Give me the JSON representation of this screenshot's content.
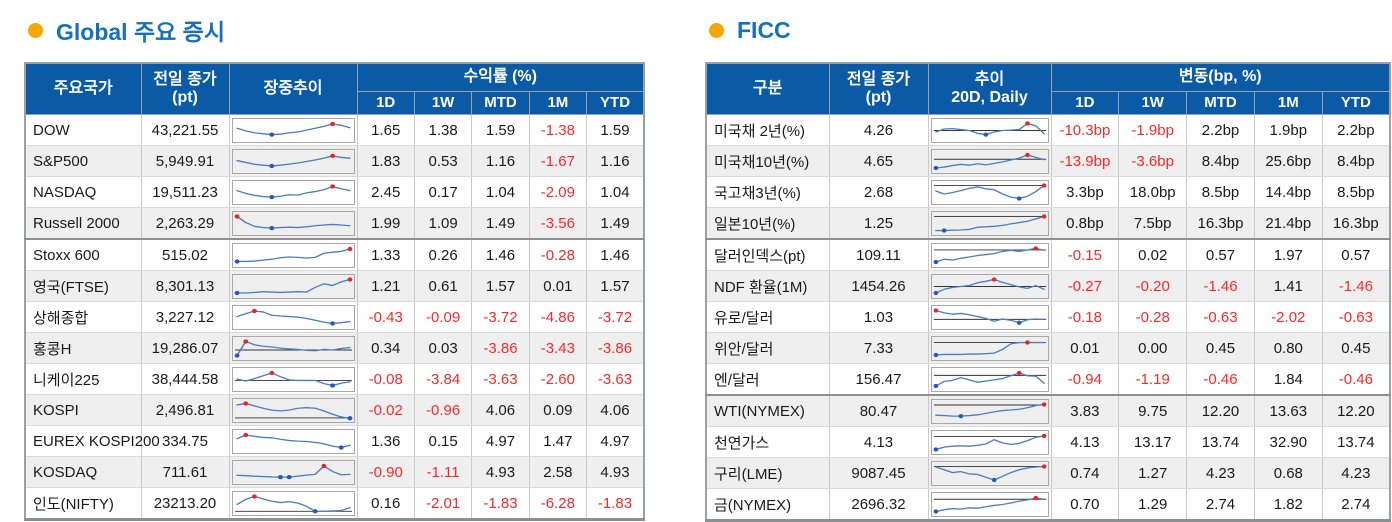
{
  "colors": {
    "header_bg": "#0a5aa5",
    "title": "#1570bd",
    "bullet": "#f7a600",
    "negative": "#fc2828",
    "text": "#1a1a1a",
    "row_alt": "#efefef",
    "spark_line": "#4d7ec0",
    "marker_max": "#e8261f",
    "marker_min": "#2456c4",
    "baseline": "#333333"
  },
  "left": {
    "title": "Global 주요 증시",
    "columns": {
      "name": "주요국가",
      "close_l1": "전일 종가",
      "close_l2": "(pt)",
      "trend_l1": "장중추이",
      "trend_l2": "",
      "group": "수익률 (%)",
      "periods": [
        "1D",
        "1W",
        "MTD",
        "1M",
        "YTD"
      ]
    },
    "rows": [
      {
        "name": "DOW",
        "close": "43,221.55",
        "values": [
          "1.65",
          "1.38",
          "1.59",
          "-1.38",
          "1.59"
        ],
        "spark": {
          "points": [
            62,
            48,
            38,
            32,
            28,
            30,
            38,
            42,
            52,
            62,
            72,
            85,
            78,
            65
          ],
          "max_i": 11,
          "min_i": 4,
          "baseline": null
        }
      },
      {
        "name": "S&P500",
        "close": "5,949.91",
        "values": [
          "1.83",
          "0.53",
          "1.16",
          "-1.67",
          "1.16"
        ],
        "spark": {
          "points": [
            55,
            45,
            35,
            30,
            26,
            30,
            36,
            42,
            50,
            58,
            68,
            80,
            72,
            68
          ],
          "max_i": 11,
          "min_i": 4,
          "baseline": null
        }
      },
      {
        "name": "NASDAQ",
        "close": "19,511.23",
        "values": [
          "2.45",
          "0.17",
          "1.04",
          "-2.09",
          "1.04"
        ],
        "spark": {
          "points": [
            60,
            45,
            35,
            28,
            25,
            30,
            38,
            36,
            48,
            55,
            65,
            82,
            70,
            60
          ],
          "max_i": 11,
          "min_i": 4,
          "baseline": null
        }
      },
      {
        "name": "Russell 2000",
        "close": "2,263.29",
        "values": [
          "1.99",
          "1.09",
          "1.49",
          "-3.56",
          "1.49"
        ],
        "spark": {
          "points": [
            88,
            55,
            35,
            28,
            25,
            28,
            30,
            28,
            32,
            38,
            42,
            45,
            42,
            38
          ],
          "max_i": 0,
          "min_i": 4,
          "baseline": null
        },
        "group_end": true
      },
      {
        "name": "Stoxx 600",
        "close": "515.02",
        "values": [
          "1.33",
          "0.26",
          "1.46",
          "-0.28",
          "1.46"
        ],
        "spark": {
          "points": [
            18,
            18,
            20,
            25,
            30,
            38,
            42,
            40,
            36,
            40,
            62,
            68,
            72,
            85
          ],
          "max_i": 13,
          "min_i": 0,
          "baseline": null
        }
      },
      {
        "name": "영국(FTSE)",
        "close": "8,301.13",
        "values": [
          "1.21",
          "0.61",
          "1.57",
          "0.01",
          "1.57"
        ],
        "spark": {
          "points": [
            15,
            15,
            18,
            22,
            20,
            18,
            20,
            22,
            20,
            45,
            65,
            55,
            75,
            88
          ],
          "max_i": 13,
          "min_i": 0,
          "baseline": null
        }
      },
      {
        "name": "상해종합",
        "close": "3,227.12",
        "values": [
          "-0.43",
          "-0.09",
          "-3.72",
          "-4.86",
          "-3.72"
        ],
        "spark": {
          "points": [
            55,
            70,
            85,
            80,
            62,
            58,
            55,
            52,
            45,
            35,
            25,
            18,
            22,
            28
          ],
          "max_i": 2,
          "min_i": 11,
          "baseline": null
        }
      },
      {
        "name": "홍콩H",
        "close": "19,286.07",
        "values": [
          "0.34",
          "0.03",
          "-3.86",
          "-3.43",
          "-3.86"
        ],
        "spark": {
          "points": [
            12,
            88,
            70,
            62,
            58,
            52,
            48,
            45,
            40,
            38,
            45,
            42,
            50,
            55
          ],
          "max_i": 1,
          "min_i": 0,
          "baseline": 42
        }
      },
      {
        "name": "니케이225",
        "close": "38,444.58",
        "values": [
          "-0.08",
          "-3.84",
          "-3.63",
          "-2.60",
          "-3.63"
        ],
        "spark": {
          "points": [
            52,
            42,
            55,
            70,
            85,
            65,
            48,
            45,
            45,
            45,
            28,
            18,
            30,
            38
          ],
          "max_i": 4,
          "min_i": 11,
          "baseline": 45
        }
      },
      {
        "name": "KOSPI",
        "close": "2,496.81",
        "values": [
          "-0.02",
          "-0.96",
          "4.06",
          "0.09",
          "4.06"
        ],
        "spark": {
          "points": [
            80,
            88,
            75,
            62,
            52,
            48,
            52,
            62,
            65,
            62,
            48,
            30,
            15,
            8
          ],
          "max_i": 1,
          "min_i": 13,
          "baseline": 10
        }
      },
      {
        "name": "EUREX KOSPI200",
        "close": "334.75",
        "values": [
          "1.36",
          "0.15",
          "4.97",
          "1.47",
          "4.97"
        ],
        "spark": {
          "points": [
            65,
            85,
            78,
            72,
            70,
            62,
            55,
            52,
            50,
            45,
            38,
            25,
            18,
            30
          ],
          "max_i": 1,
          "min_i": 12,
          "baseline": null
        }
      },
      {
        "name": "KOSDAQ",
        "close": "711.61",
        "values": [
          "-0.90",
          "-1.11",
          "4.93",
          "2.58",
          "4.93"
        ],
        "spark": {
          "points": [
            35,
            33,
            30,
            28,
            26,
            25,
            25,
            30,
            36,
            40,
            85,
            55,
            38,
            40
          ],
          "max_i": 10,
          "min_i": 5,
          "min2_i": 6,
          "baseline": null
        }
      },
      {
        "name": "인도(NIFTY)",
        "close": "23213.20",
        "values": [
          "0.16",
          "-2.01",
          "-1.83",
          "-6.28",
          "-1.83"
        ],
        "spark": {
          "points": [
            45,
            72,
            88,
            75,
            62,
            55,
            60,
            52,
            35,
            8,
            8,
            10,
            12,
            28
          ],
          "max_i": 2,
          "min_i": 9,
          "baseline": 8
        }
      }
    ]
  },
  "right": {
    "title": "FICC",
    "columns": {
      "name": "구분",
      "close_l1": "전일 종가",
      "close_l2": "(pt)",
      "trend_l1": "추이",
      "trend_l2": "20D, Daily",
      "group": "변동(bp, %)",
      "periods": [
        "1D",
        "1W",
        "MTD",
        "1M",
        "YTD"
      ]
    },
    "rows": [
      {
        "name": "미국채 2년(%)",
        "close": "4.26",
        "values": [
          "-10.3bp",
          "-1.9bp",
          "2.2bp",
          "1.9bp",
          "2.2bp"
        ],
        "spark": {
          "points": [
            42,
            58,
            60,
            55,
            50,
            35,
            28,
            42,
            50,
            52,
            55,
            88,
            75,
            32
          ],
          "max_i": 11,
          "min_i": 6,
          "baseline": 50
        }
      },
      {
        "name": "미국채10년(%)",
        "close": "4.65",
        "values": [
          "-13.9bp",
          "-3.6bp",
          "8.4bp",
          "25.6bp",
          "8.4bp"
        ],
        "spark": {
          "points": [
            15,
            20,
            28,
            35,
            30,
            38,
            32,
            40,
            48,
            58,
            68,
            85,
            72,
            60
          ],
          "max_i": 11,
          "min_i": 0,
          "baseline": 62
        }
      },
      {
        "name": "국고채3년(%)",
        "close": "2.68",
        "values": [
          "3.3bp",
          "18.0bp",
          "8.5bp",
          "14.4bp",
          "8.5bp"
        ],
        "spark": {
          "points": [
            58,
            42,
            50,
            60,
            72,
            80,
            70,
            65,
            42,
            25,
            18,
            30,
            55,
            88
          ],
          "max_i": 13,
          "min_i": 10,
          "baseline": 88
        }
      },
      {
        "name": "일본10년(%)",
        "close": "1.25",
        "values": [
          "0.8bp",
          "7.5bp",
          "16.3bp",
          "21.4bp",
          "16.3bp"
        ],
        "spark": {
          "points": [
            12,
            12,
            14,
            15,
            18,
            30,
            32,
            35,
            40,
            48,
            55,
            62,
            75,
            88
          ],
          "max_i": 13,
          "min_i": 1,
          "baseline": 88
        },
        "group_end": true
      },
      {
        "name": "달러인덱스(pt)",
        "close": "109.11",
        "values": [
          "-0.15",
          "0.02",
          "0.57",
          "1.97",
          "0.57"
        ],
        "spark": {
          "points": [
            15,
            30,
            25,
            35,
            42,
            50,
            55,
            60,
            72,
            78,
            72,
            80,
            88,
            78
          ],
          "max_i": 12,
          "min_i": 0,
          "baseline": 80
        }
      },
      {
        "name": "NDF 환율(1M)",
        "close": "1454.26",
        "values": [
          "-0.27",
          "-0.20",
          "-1.46",
          "1.41",
          "-1.46"
        ],
        "spark": {
          "points": [
            15,
            35,
            45,
            50,
            55,
            70,
            78,
            88,
            72,
            60,
            48,
            40,
            55,
            35
          ],
          "max_i": 7,
          "min_i": 0,
          "baseline": 50
        }
      },
      {
        "name": "유로/달러",
        "close": "1.03",
        "values": [
          "-0.18",
          "-0.28",
          "-0.63",
          "-2.02",
          "-0.63"
        ],
        "spark": {
          "points": [
            88,
            75,
            68,
            72,
            65,
            55,
            45,
            30,
            42,
            35,
            22,
            38,
            42,
            40
          ],
          "max_i": 0,
          "min_i": 10,
          "baseline": 40
        }
      },
      {
        "name": "위안/달러",
        "close": "7.33",
        "values": [
          "0.01",
          "0.00",
          "0.45",
          "0.80",
          "0.45"
        ],
        "spark": {
          "points": [
            15,
            18,
            18,
            18,
            20,
            20,
            22,
            25,
            45,
            75,
            82,
            82,
            82,
            82
          ],
          "max_i": 11,
          "min_i": 0,
          "baseline": 82
        }
      },
      {
        "name": "엔/달러",
        "close": "156.47",
        "values": [
          "-0.94",
          "-1.19",
          "-0.46",
          "1.84",
          "-0.46"
        ],
        "spark": {
          "points": [
            15,
            40,
            45,
            60,
            48,
            35,
            42,
            48,
            55,
            70,
            85,
            70,
            68,
            30
          ],
          "max_i": 10,
          "min_i": 0,
          "baseline": 72
        },
        "group_end": true
      },
      {
        "name": "WTI(NYMEX)",
        "close": "80.47",
        "values": [
          "3.83",
          "9.75",
          "12.20",
          "13.63",
          "12.20"
        ],
        "spark": {
          "points": [
            30,
            28,
            25,
            25,
            28,
            32,
            40,
            48,
            55,
            58,
            62,
            70,
            82,
            88
          ],
          "max_i": 13,
          "min_i": 3,
          "baseline": 85
        }
      },
      {
        "name": "천연가스",
        "close": "4.13",
        "values": [
          "4.13",
          "13.17",
          "13.74",
          "32.90",
          "13.74"
        ],
        "spark": {
          "points": [
            12,
            25,
            30,
            32,
            30,
            35,
            42,
            65,
            48,
            40,
            45,
            60,
            78,
            85
          ],
          "max_i": 13,
          "min_i": 0,
          "baseline": 82
        }
      },
      {
        "name": "구리(LME)",
        "close": "9087.45",
        "values": [
          "0.74",
          "1.27",
          "4.23",
          "0.68",
          "4.23"
        ],
        "spark": {
          "points": [
            85,
            70,
            55,
            60,
            48,
            45,
            30,
            15,
            35,
            55,
            70,
            80,
            85,
            88
          ],
          "max_i": 13,
          "min_i": 7,
          "baseline": 88
        }
      },
      {
        "name": "금(NYMEX)",
        "close": "2696.32",
        "values": [
          "0.70",
          "1.29",
          "2.74",
          "1.82",
          "2.74"
        ],
        "spark": {
          "points": [
            12,
            22,
            28,
            25,
            32,
            30,
            38,
            45,
            50,
            58,
            68,
            75,
            85,
            78
          ],
          "max_i": 12,
          "min_i": 0,
          "baseline": 78
        }
      }
    ]
  }
}
